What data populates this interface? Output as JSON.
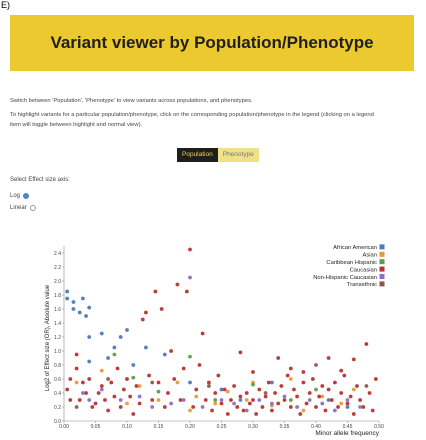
{
  "panel_label": "E)",
  "banner": {
    "title": "Variant viewer by Population/Phenotype"
  },
  "description": {
    "line1": "Switch between 'Population', 'Phenotype' to view variants across populations, and phenotypes.",
    "line2": "To highlight variants for a particular population/phenotype, click on the corresponding population/phenotype in the legend (clicking on a legend",
    "line3": "item will toggle between highlight and normal view)."
  },
  "toggle": {
    "population_label": "Population",
    "phenotype_label": "Phenotype",
    "selected": "Population"
  },
  "effect_axis": {
    "label": "Select Effect size axis:",
    "options": [
      "Log",
      "Linear"
    ],
    "selected": "Log"
  },
  "colors": {
    "African American": "#4e79b8",
    "Asian": "#e89a3a",
    "Caribbean Hispanic": "#5aa046",
    "Caucasian": "#b8312f",
    "Non-Hispanic Caucasian": "#8a6fc9",
    "Transethnic": "#8c5a4a"
  },
  "chart_data": {
    "type": "scatter",
    "xlabel": "Minor allele frequency",
    "ylabel": "Log2 of Effect size (OR), Absolute value",
    "xlim": [
      0,
      0.5
    ],
    "ylim": [
      0,
      2.5
    ],
    "xticks": [
      "0.00",
      "0.05",
      "0.10",
      "0.15",
      "0.20",
      "0.25",
      "0.30",
      "0.35",
      "0.40",
      "0.45",
      "0.50"
    ],
    "yticks": [
      "0.0",
      "0.2",
      "0.4",
      "0.6",
      "0.8",
      "1.0",
      "1.2",
      "1.4",
      "1.6",
      "1.8",
      "2.0",
      "2.2",
      "2.4"
    ],
    "legend": [
      "African American",
      "Asian",
      "Caribbean Hispanic",
      "Caucasian",
      "Non-Hispanic Caucasian",
      "Transethnic"
    ],
    "legend_position": "top-right",
    "series": [
      {
        "name": "African American",
        "points": [
          [
            0.005,
            1.85
          ],
          [
            0.005,
            1.75
          ],
          [
            0.015,
            1.7
          ],
          [
            0.015,
            1.6
          ],
          [
            0.025,
            1.55
          ],
          [
            0.035,
            1.5
          ],
          [
            0.03,
            1.75
          ],
          [
            0.04,
            1.62
          ],
          [
            0.04,
            1.2
          ],
          [
            0.04,
            0.85
          ],
          [
            0.06,
            1.25
          ],
          [
            0.07,
            0.9
          ],
          [
            0.08,
            1.05
          ],
          [
            0.09,
            1.2
          ],
          [
            0.1,
            1.3
          ],
          [
            0.11,
            0.8
          ],
          [
            0.13,
            1.05
          ],
          [
            0.16,
            0.95
          ],
          [
            0.2,
            0.55
          ],
          [
            0.25,
            0.45
          ],
          [
            0.28,
            0.3
          ],
          [
            0.33,
            0.55
          ],
          [
            0.42,
            0.3
          ],
          [
            0.45,
            0.2
          ]
        ]
      },
      {
        "name": "Asian",
        "points": [
          [
            0.02,
            0.55
          ],
          [
            0.06,
            0.72
          ],
          [
            0.1,
            0.25
          ],
          [
            0.12,
            0.5
          ],
          [
            0.15,
            0.3
          ],
          [
            0.18,
            0.55
          ],
          [
            0.2,
            0.15
          ],
          [
            0.21,
            0.35
          ],
          [
            0.24,
            0.25
          ],
          [
            0.26,
            0.42
          ],
          [
            0.29,
            0.3
          ],
          [
            0.3,
            0.55
          ],
          [
            0.33,
            0.22
          ],
          [
            0.36,
            0.6
          ],
          [
            0.38,
            0.15
          ],
          [
            0.41,
            0.35
          ],
          [
            0.44,
            0.25
          ],
          [
            0.46,
            0.45
          ]
        ]
      },
      {
        "name": "Caribbean Hispanic",
        "points": [
          [
            0.08,
            0.95
          ],
          [
            0.11,
            0.62
          ],
          [
            0.15,
            0.42
          ],
          [
            0.2,
            0.92
          ],
          [
            0.24,
            0.3
          ],
          [
            0.3,
            0.52
          ],
          [
            0.36,
            0.3
          ],
          [
            0.4,
            0.45
          ]
        ]
      },
      {
        "name": "Caucasian",
        "points": [
          [
            0.005,
            0.45
          ],
          [
            0.01,
            0.3
          ],
          [
            0.01,
            0.6
          ],
          [
            0.02,
            0.95
          ],
          [
            0.02,
            0.75
          ],
          [
            0.025,
            0.3
          ],
          [
            0.03,
            0.55
          ],
          [
            0.035,
            0.4
          ],
          [
            0.04,
            0.6
          ],
          [
            0.045,
            0.2
          ],
          [
            0.05,
            0.25
          ],
          [
            0.055,
            0.4
          ],
          [
            0.06,
            0.5
          ],
          [
            0.065,
            0.3
          ],
          [
            0.07,
            0.15
          ],
          [
            0.075,
            0.55
          ],
          [
            0.08,
            0.35
          ],
          [
            0.085,
            0.75
          ],
          [
            0.09,
            0.2
          ],
          [
            0.095,
            0.45
          ],
          [
            0.1,
            0.6
          ],
          [
            0.105,
            0.35
          ],
          [
            0.11,
            0.1
          ],
          [
            0.115,
            0.5
          ],
          [
            0.12,
            0.25
          ],
          [
            0.125,
            1.45
          ],
          [
            0.13,
            1.55
          ],
          [
            0.135,
            0.65
          ],
          [
            0.14,
            0.3
          ],
          [
            0.145,
            1.85
          ],
          [
            0.15,
            0.55
          ],
          [
            0.155,
            1.6
          ],
          [
            0.16,
            0.2
          ],
          [
            0.165,
            0.4
          ],
          [
            0.17,
            1.0
          ],
          [
            0.175,
            0.6
          ],
          [
            0.18,
            1.95
          ],
          [
            0.185,
            0.3
          ],
          [
            0.19,
            0.75
          ],
          [
            0.195,
            1.85
          ],
          [
            0.2,
            2.45
          ],
          [
            0.205,
            0.2
          ],
          [
            0.21,
            0.45
          ],
          [
            0.215,
            0.8
          ],
          [
            0.22,
            1.25
          ],
          [
            0.225,
            0.3
          ],
          [
            0.23,
            0.55
          ],
          [
            0.235,
            0.15
          ],
          [
            0.24,
            0.4
          ],
          [
            0.245,
            0.65
          ],
          [
            0.25,
            0.25
          ],
          [
            0.255,
            0.45
          ],
          [
            0.26,
            0.1
          ],
          [
            0.265,
            0.3
          ],
          [
            0.27,
            0.5
          ],
          [
            0.275,
            0.2
          ],
          [
            0.28,
            0.35
          ],
          [
            0.285,
            0.15
          ],
          [
            0.29,
            0.4
          ],
          [
            0.295,
            0.25
          ],
          [
            0.3,
            0.3
          ],
          [
            0.305,
            0.1
          ],
          [
            0.31,
            0.45
          ],
          [
            0.315,
            0.2
          ],
          [
            0.32,
            0.35
          ],
          [
            0.325,
            0.55
          ],
          [
            0.33,
            0.15
          ],
          [
            0.335,
            0.4
          ],
          [
            0.34,
            0.25
          ],
          [
            0.345,
            0.5
          ],
          [
            0.35,
            0.3
          ],
          [
            0.355,
            0.65
          ],
          [
            0.36,
            0.2
          ],
          [
            0.365,
            0.45
          ],
          [
            0.37,
            0.35
          ],
          [
            0.375,
            0.1
          ],
          [
            0.38,
            0.55
          ],
          [
            0.385,
            0.25
          ],
          [
            0.39,
            0.4
          ],
          [
            0.395,
            0.6
          ],
          [
            0.4,
            0.2
          ],
          [
            0.405,
            0.35
          ],
          [
            0.41,
            0.5
          ],
          [
            0.415,
            0.15
          ],
          [
            0.42,
            0.45
          ],
          [
            0.425,
            0.3
          ],
          [
            0.43,
            0.55
          ],
          [
            0.435,
            0.2
          ],
          [
            0.44,
            0.4
          ],
          [
            0.445,
            0.65
          ],
          [
            0.45,
            0.25
          ],
          [
            0.455,
            0.35
          ],
          [
            0.46,
            0.1
          ],
          [
            0.465,
            0.5
          ],
          [
            0.47,
            0.3
          ],
          [
            0.475,
            0.2
          ],
          [
            0.48,
            1.1
          ],
          [
            0.485,
            0.4
          ],
          [
            0.49,
            0.15
          ],
          [
            0.495,
            0.6
          ],
          [
            0.28,
            0.98
          ],
          [
            0.34,
            0.9
          ],
          [
            0.42,
            0.9
          ],
          [
            0.46,
            0.88
          ],
          [
            0.44,
            0.72
          ],
          [
            0.36,
            0.75
          ],
          [
            0.3,
            0.7
          ],
          [
            0.38,
            0.7
          ]
        ]
      },
      {
        "name": "Non-Hispanic Caucasian",
        "points": [
          [
            0.03,
            0.4
          ],
          [
            0.04,
            0.3
          ],
          [
            0.06,
            0.45
          ],
          [
            0.09,
            0.3
          ],
          [
            0.12,
            0.35
          ],
          [
            0.14,
            0.2
          ],
          [
            0.17,
            0.25
          ],
          [
            0.19,
            0.3
          ],
          [
            0.2,
            2.05
          ],
          [
            0.22,
            0.2
          ],
          [
            0.25,
            0.3
          ],
          [
            0.27,
            0.25
          ],
          [
            0.29,
            0.15
          ],
          [
            0.31,
            0.3
          ],
          [
            0.33,
            0.25
          ],
          [
            0.35,
            0.35
          ],
          [
            0.37,
            0.2
          ],
          [
            0.39,
            0.3
          ],
          [
            0.41,
            0.25
          ],
          [
            0.43,
            0.15
          ],
          [
            0.45,
            0.3
          ],
          [
            0.47,
            0.2
          ]
        ]
      },
      {
        "name": "Transethnic",
        "points": [
          [
            0.02,
            0.2
          ],
          [
            0.07,
            0.6
          ],
          [
            0.14,
            0.55
          ],
          [
            0.23,
            0.5
          ],
          [
            0.32,
            0.4
          ],
          [
            0.4,
            0.8
          ],
          [
            0.48,
            0.5
          ]
        ]
      }
    ]
  }
}
